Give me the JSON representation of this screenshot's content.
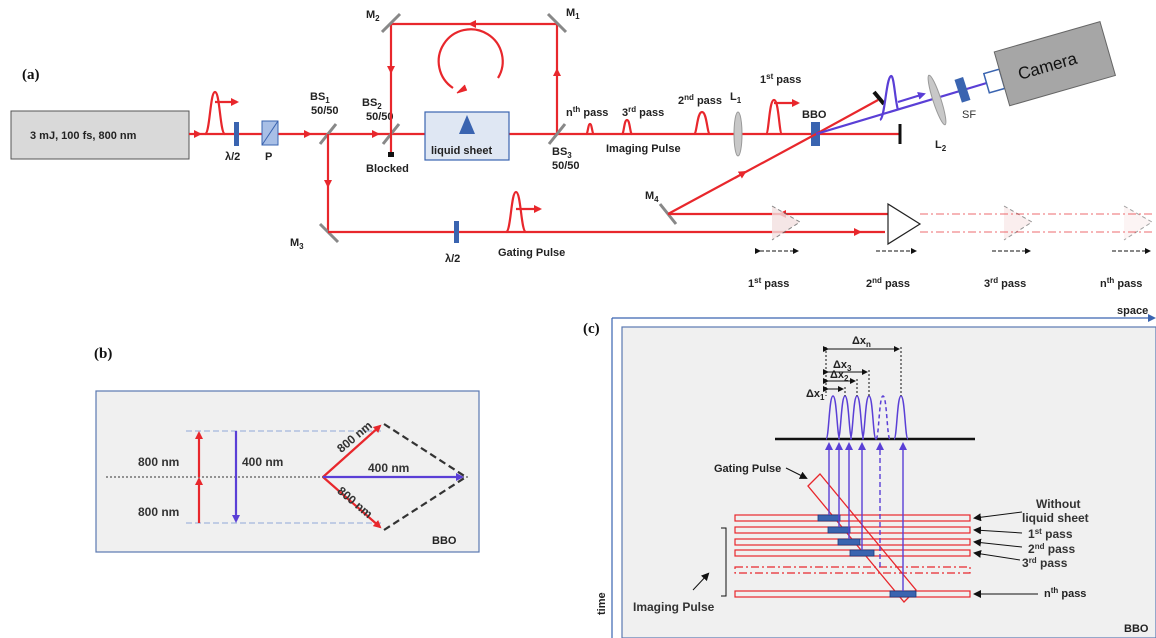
{
  "panel_a": {
    "panel_label": "(a)",
    "laser_label": "3 mJ, 100 fs, 800 nm",
    "half_wave_1": "λ/2",
    "polarizer": "P",
    "bs1_name": "BS",
    "bs1_sub": "1",
    "bs1_ratio": "50/50",
    "bs2_name": "BS",
    "bs2_sub": "2",
    "bs2_ratio": "50/50",
    "blocked": "Blocked",
    "m1": "M",
    "m1_sub": "1",
    "m2": "M",
    "m2_sub": "2",
    "m3": "M",
    "m3_sub": "3",
    "m4": "M",
    "m4_sub": "4",
    "liquid_sheet": "liquid sheet",
    "bs3_name": "BS",
    "bs3_sub": "3",
    "bs3_ratio": "50/50",
    "nth_pass": "n",
    "nth_sup": "th",
    "nth_tail": " pass",
    "third_pass": "3",
    "third_sup": "rd",
    "third_tail": " pass",
    "second_pass": "2",
    "second_sup": "nd",
    "second_tail": " pass",
    "first_pass": "1",
    "first_sup": "st",
    "first_tail": " pass",
    "imaging_pulse": "Imaging Pulse",
    "l1": "L",
    "l1_sub": "1",
    "l2": "L",
    "l2_sub": "2",
    "bbo": "BBO",
    "camera": "Camera",
    "sf": "SF",
    "half_wave_2": "λ/2",
    "gating_pulse": "Gating Pulse",
    "delay_1": "1",
    "delay_1_sup": "st",
    "delay_1_tail": " pass",
    "delay_2": "2",
    "delay_2_sup": "nd",
    "delay_2_tail": " pass",
    "delay_3": "3",
    "delay_3_sup": "rd",
    "delay_3_tail": " pass",
    "delay_n": "n",
    "delay_n_sup": "th",
    "delay_n_tail": " pass"
  },
  "panel_b": {
    "panel_label": "(b)",
    "top_800": "800 nm",
    "bottom_800": "800 nm",
    "vertical_400": "400 nm",
    "diag_upper_800": "800 nm",
    "diag_400": "400 nm",
    "diag_lower_800": "800 nm",
    "bbo": "BBO"
  },
  "panel_c": {
    "panel_label": "(c)",
    "space": "space",
    "time": "time",
    "dxn": "Δx",
    "dxn_sub": "n",
    "dx3": "Δx",
    "dx3_sub": "3",
    "dx2": "Δx",
    "dx2_sub": "2",
    "dx1": "Δx",
    "dx1_sub": "1",
    "gating_pulse": "Gating Pulse",
    "without_1": "Without",
    "without_2": "liquid sheet",
    "p1": "1",
    "p1_sup": "st",
    "p1_tail": " pass",
    "p2": "2",
    "p2_sup": "nd",
    "p2_tail": " pass",
    "p3": "3",
    "p3_sup": "rd",
    "p3_tail": " pass",
    "imaging_pulse": "Imaging Pulse",
    "pn": "n",
    "pn_sup": "th",
    "pn_tail": " pass",
    "bbo": "BBO"
  },
  "colors": {
    "red_beam": "#e8272c",
    "blue_beam": "#5a3fd6",
    "component_blue": "#3a64b0",
    "box_gray": "#d9d9d9",
    "panel_gray": "#f0f0f0"
  }
}
